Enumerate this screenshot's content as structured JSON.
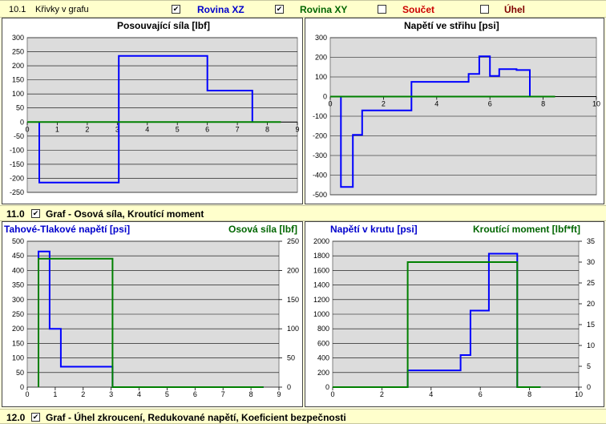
{
  "header": {
    "section": "10.1",
    "label": "Křivky v grafu",
    "toggles": [
      {
        "label": "Rovina XZ",
        "checked": true,
        "color": "#0000cc"
      },
      {
        "label": "Rovina XY",
        "checked": true,
        "color": "#006600"
      },
      {
        "label": "Součet",
        "checked": false,
        "color": "#cc0000"
      },
      {
        "label": "Úhel",
        "checked": false,
        "color": "#800000"
      }
    ]
  },
  "section_11": {
    "number": "11.0",
    "label": "Graf - Osová síla,  Kroutící moment",
    "checked": true
  },
  "section_12": {
    "number": "12.0",
    "label": "Graf - Úhel zkroucení,  Redukované napětí,  Koeficient bezpečnosti",
    "checked": true
  },
  "chart_data": [
    {
      "type": "line",
      "title": "Posouvající síla [lbf]",
      "xlim": [
        0,
        9
      ],
      "ylim": [
        -250,
        300
      ],
      "xticks": [
        0,
        1,
        2,
        3,
        4,
        5,
        6,
        7,
        8,
        9
      ],
      "yticks": [
        -250,
        -200,
        -150,
        -100,
        -50,
        0,
        50,
        100,
        150,
        200,
        250,
        300
      ],
      "series": [
        {
          "color": "#0000ff",
          "x": [
            0.4,
            0.4,
            3.05,
            3.05,
            6.0,
            6.0,
            7.5,
            7.5
          ],
          "y": [
            0,
            -215,
            -215,
            235,
            235,
            112,
            112,
            0
          ]
        },
        {
          "color": "#008000",
          "x": [
            0,
            8.45
          ],
          "y": [
            0,
            0
          ]
        }
      ]
    },
    {
      "type": "line",
      "title": "Napětí ve střihu [psi]",
      "xlim": [
        0,
        10
      ],
      "ylim": [
        -500,
        300
      ],
      "xticks": [
        0,
        2,
        4,
        6,
        8,
        10
      ],
      "yticks": [
        -500,
        -400,
        -300,
        -200,
        -100,
        0,
        100,
        200,
        300
      ],
      "series": [
        {
          "color": "#0000ff",
          "x": [
            0.4,
            0.4,
            0.85,
            0.85,
            1.2,
            1.2,
            3.05,
            3.05,
            5.2,
            5.2,
            5.6,
            5.6,
            6.0,
            6.0,
            6.35,
            6.35,
            7.0,
            7.0,
            7.5,
            7.5,
            8.45
          ],
          "y": [
            0,
            -460,
            -460,
            -195,
            -195,
            -70,
            -70,
            75,
            75,
            115,
            115,
            205,
            205,
            105,
            105,
            140,
            140,
            135,
            135,
            0,
            0
          ]
        },
        {
          "color": "#008000",
          "x": [
            0,
            8.45
          ],
          "y": [
            0,
            0
          ]
        }
      ]
    },
    {
      "type": "line",
      "title": "Tahové-Tlakové napětí [psi]",
      "title2": "Osová síla [lbf]",
      "xlim": [
        0,
        9
      ],
      "ylim": [
        0,
        500
      ],
      "y2lim": [
        0,
        250
      ],
      "xticks": [
        0,
        1,
        2,
        3,
        4,
        5,
        6,
        7,
        8,
        9
      ],
      "yticks": [
        0,
        50,
        100,
        150,
        200,
        250,
        300,
        350,
        400,
        450,
        500
      ],
      "y2ticks": [
        0,
        50,
        100,
        150,
        200,
        250
      ],
      "series": [
        {
          "color": "#0000ff",
          "axis": "left",
          "x": [
            0.4,
            0.4,
            0.8,
            0.8,
            1.2,
            1.2,
            3.05,
            3.05,
            8.45
          ],
          "y": [
            0,
            465,
            465,
            200,
            200,
            70,
            70,
            0,
            0
          ]
        },
        {
          "color": "#008000",
          "axis": "right",
          "x": [
            0.4,
            0.4,
            3.05,
            3.05,
            8.45
          ],
          "y": [
            0,
            220,
            220,
            0,
            0
          ]
        }
      ]
    },
    {
      "type": "line",
      "title": "Napětí v krutu [psi]",
      "title2": "Kroutící moment [lbf*ft]",
      "xlim": [
        0,
        10
      ],
      "ylim": [
        0,
        2000
      ],
      "y2lim": [
        0,
        35
      ],
      "xticks": [
        0,
        2,
        4,
        6,
        8,
        10
      ],
      "yticks": [
        0,
        200,
        400,
        600,
        800,
        1000,
        1200,
        1400,
        1600,
        1800,
        2000
      ],
      "y2ticks": [
        0,
        5,
        10,
        15,
        20,
        25,
        30,
        35
      ],
      "series": [
        {
          "color": "#0000ff",
          "axis": "left",
          "x": [
            0,
            3.05,
            3.05,
            5.2,
            5.2,
            5.6,
            5.6,
            6.35,
            6.35,
            7.5,
            7.5,
            8.45
          ],
          "y": [
            0,
            0,
            230,
            230,
            440,
            440,
            1050,
            1050,
            1830,
            1830,
            0,
            0
          ]
        },
        {
          "color": "#008000",
          "axis": "right",
          "x": [
            0,
            3.05,
            3.05,
            7.5,
            7.5,
            8.45
          ],
          "y": [
            0,
            0,
            30,
            30,
            0,
            0
          ]
        }
      ]
    }
  ]
}
